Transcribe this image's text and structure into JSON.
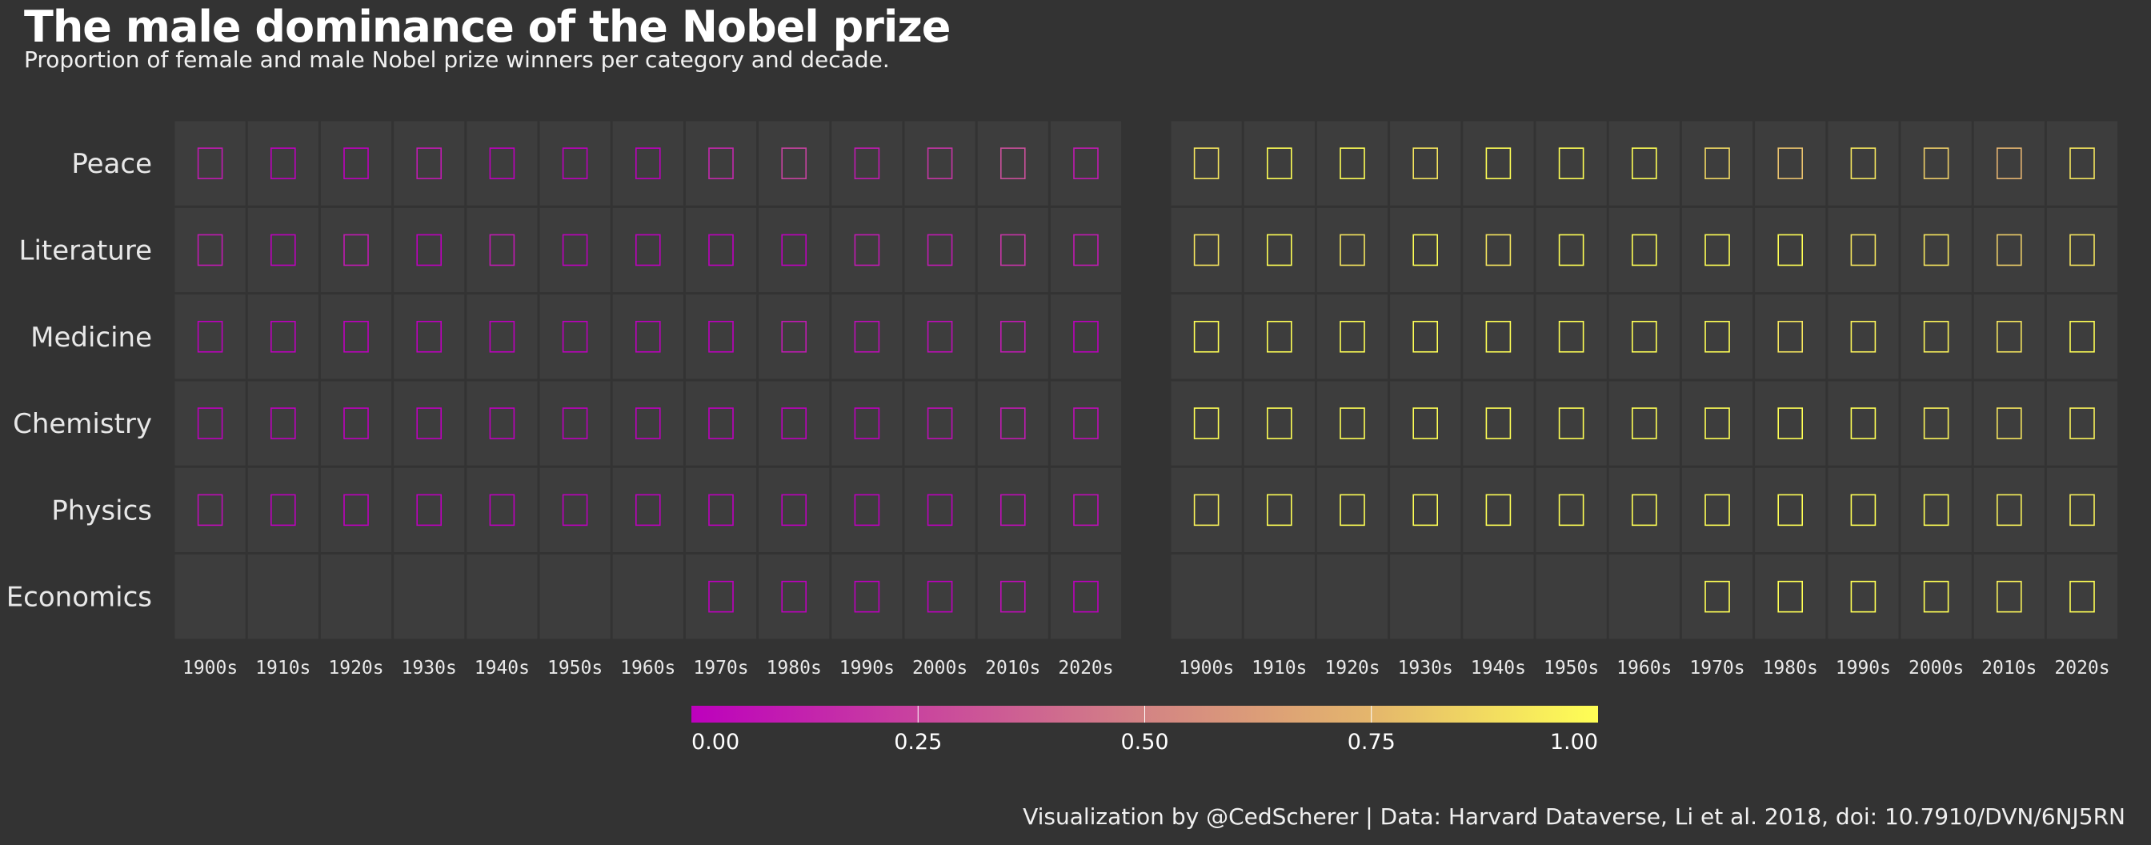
{
  "header": {
    "title": "The male dominance of the Nobel prize",
    "subtitle": "Proportion of female and male Nobel prize winners per category and decade."
  },
  "footer": {
    "caption": "Visualization by @CedScherer  |  Data: Harvard Dataverse, Li et al. 2018, doi: 10.7910/DVN/6NJ5RN"
  },
  "colors": {
    "background": "#333333",
    "panel_cell": "#3d3d3d",
    "scale_low": "#bd00bd",
    "scale_mid": "#d38484",
    "scale_high": "#ffff55"
  },
  "chart_data": {
    "type": "heatmap",
    "categories": [
      "Peace",
      "Literature",
      "Medicine",
      "Chemistry",
      "Physics",
      "Economics"
    ],
    "decades": [
      "1900s",
      "1910s",
      "1920s",
      "1930s",
      "1940s",
      "1950s",
      "1960s",
      "1970s",
      "1980s",
      "1990s",
      "2000s",
      "2010s",
      "2020s"
    ],
    "panels": [
      {
        "values": [
          [
            0.1,
            0.0,
            0.0,
            0.1,
            0.0,
            0.0,
            0.0,
            0.15,
            0.25,
            0.1,
            0.2,
            0.3,
            0.1
          ],
          [
            0.1,
            0.0,
            0.1,
            0.0,
            0.1,
            0.0,
            0.0,
            0.0,
            0.0,
            0.1,
            0.1,
            0.2,
            0.1
          ],
          [
            0.0,
            0.0,
            0.0,
            0.0,
            0.0,
            0.0,
            0.0,
            0.0,
            0.1,
            0.05,
            0.05,
            0.1,
            0.0
          ],
          [
            0.0,
            0.0,
            0.0,
            0.0,
            0.0,
            0.0,
            0.0,
            0.0,
            0.0,
            0.0,
            0.05,
            0.1,
            0.05
          ],
          [
            0.05,
            0.0,
            0.0,
            0.0,
            0.0,
            0.0,
            0.0,
            0.0,
            0.0,
            0.0,
            0.0,
            0.05,
            0.05
          ],
          [
            null,
            null,
            null,
            null,
            null,
            null,
            null,
            0.0,
            0.0,
            0.0,
            0.0,
            0.05,
            0.0
          ]
        ]
      },
      {
        "values": [
          [
            0.9,
            1.0,
            1.0,
            0.9,
            1.0,
            1.0,
            1.0,
            0.85,
            0.75,
            0.9,
            0.8,
            0.7,
            0.9
          ],
          [
            0.9,
            1.0,
            0.9,
            1.0,
            0.9,
            1.0,
            1.0,
            1.0,
            1.0,
            0.9,
            0.9,
            0.8,
            0.9
          ],
          [
            1.0,
            1.0,
            1.0,
            1.0,
            1.0,
            1.0,
            1.0,
            1.0,
            0.9,
            0.95,
            0.95,
            0.9,
            1.0
          ],
          [
            1.0,
            1.0,
            1.0,
            1.0,
            1.0,
            1.0,
            1.0,
            1.0,
            1.0,
            1.0,
            0.95,
            0.9,
            0.95
          ],
          [
            0.95,
            1.0,
            1.0,
            1.0,
            1.0,
            1.0,
            1.0,
            1.0,
            1.0,
            1.0,
            1.0,
            0.95,
            0.95
          ],
          [
            null,
            null,
            null,
            null,
            null,
            null,
            null,
            1.0,
            1.0,
            1.0,
            1.0,
            0.95,
            1.0
          ]
        ]
      }
    ],
    "legend": {
      "ticks": [
        "0.00",
        "0.25",
        "0.50",
        "0.75",
        "1.00"
      ],
      "range": [
        0,
        1
      ],
      "placement": "bottom-center"
    }
  }
}
